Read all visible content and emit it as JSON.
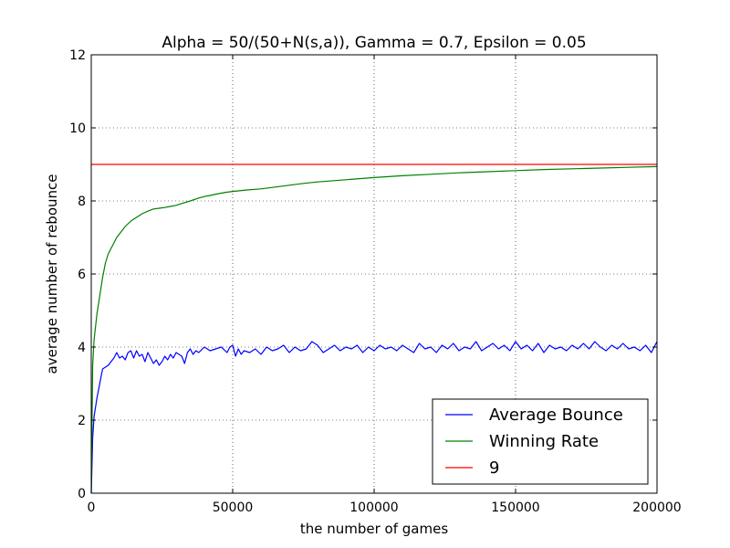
{
  "chart_data": {
    "type": "line",
    "title": "Alpha = 50/(50+N(s,a)), Gamma = 0.7, Epsilon = 0.05",
    "xlabel": "the number of games",
    "ylabel": "average number of rebounce",
    "xlim": [
      0,
      200000
    ],
    "ylim": [
      0,
      12
    ],
    "xticks": [
      0,
      50000,
      100000,
      150000,
      200000
    ],
    "xtick_labels": [
      "0",
      "50000",
      "100000",
      "150000",
      "200000"
    ],
    "yticks": [
      0,
      2,
      4,
      6,
      8,
      10,
      12
    ],
    "ytick_labels": [
      "0",
      "2",
      "4",
      "6",
      "8",
      "10",
      "12"
    ],
    "grid": true,
    "legend_position": "lower-right",
    "series": [
      {
        "name": "Average Bounce",
        "color": "#0000ff",
        "x": [
          0,
          500,
          1000,
          2000,
          3000,
          4000,
          5000,
          6000,
          8000,
          9000,
          10000,
          11000,
          12000,
          13000,
          14000,
          15000,
          16000,
          17000,
          18000,
          19000,
          20000,
          21000,
          22000,
          23000,
          24000,
          25000,
          26000,
          27000,
          28000,
          29000,
          30000,
          32000,
          33000,
          34000,
          35000,
          36000,
          37000,
          38000,
          40000,
          42000,
          44000,
          46000,
          48000,
          49000,
          50000,
          51000,
          52000,
          53000,
          54000,
          56000,
          58000,
          60000,
          62000,
          64000,
          66000,
          68000,
          70000,
          72000,
          74000,
          76000,
          78000,
          80000,
          82000,
          84000,
          86000,
          88000,
          90000,
          92000,
          94000,
          96000,
          98000,
          100000,
          102000,
          104000,
          106000,
          108000,
          110000,
          112000,
          114000,
          116000,
          118000,
          120000,
          122000,
          124000,
          126000,
          128000,
          130000,
          132000,
          134000,
          136000,
          138000,
          140000,
          142000,
          144000,
          146000,
          148000,
          150000,
          152000,
          154000,
          156000,
          158000,
          160000,
          162000,
          164000,
          166000,
          168000,
          170000,
          172000,
          174000,
          176000,
          178000,
          180000,
          182000,
          184000,
          186000,
          188000,
          190000,
          192000,
          194000,
          196000,
          198000,
          200000
        ],
        "y": [
          0.0,
          1.5,
          2.1,
          2.6,
          3.0,
          3.4,
          3.45,
          3.5,
          3.7,
          3.85,
          3.7,
          3.75,
          3.65,
          3.85,
          3.9,
          3.7,
          3.9,
          3.75,
          3.8,
          3.6,
          3.85,
          3.7,
          3.55,
          3.65,
          3.5,
          3.6,
          3.75,
          3.65,
          3.8,
          3.7,
          3.85,
          3.75,
          3.55,
          3.85,
          3.95,
          3.8,
          3.9,
          3.85,
          4.0,
          3.9,
          3.95,
          4.0,
          3.85,
          4.0,
          4.05,
          3.75,
          3.95,
          3.8,
          3.9,
          3.85,
          3.95,
          3.8,
          4.0,
          3.9,
          3.95,
          4.05,
          3.85,
          4.0,
          3.9,
          3.95,
          4.15,
          4.05,
          3.85,
          3.95,
          4.05,
          3.9,
          4.0,
          3.95,
          4.05,
          3.85,
          4.0,
          3.9,
          4.05,
          3.95,
          4.0,
          3.9,
          4.05,
          3.95,
          3.85,
          4.1,
          3.95,
          4.0,
          3.85,
          4.05,
          3.95,
          4.1,
          3.9,
          4.0,
          3.95,
          4.15,
          3.9,
          4.0,
          4.1,
          3.95,
          4.05,
          3.9,
          4.15,
          3.95,
          4.05,
          3.9,
          4.1,
          3.85,
          4.05,
          3.95,
          4.0,
          3.9,
          4.05,
          3.95,
          4.1,
          3.95,
          4.15,
          4.0,
          3.9,
          4.05,
          3.95,
          4.1,
          3.95,
          4.0,
          3.9,
          4.05,
          3.85,
          4.15
        ]
      },
      {
        "name": "Winning Rate",
        "color": "#008000",
        "x": [
          0,
          500,
          1000,
          2000,
          3000,
          4000,
          5000,
          6000,
          7000,
          8000,
          9000,
          10000,
          12000,
          14000,
          16000,
          18000,
          20000,
          22000,
          24000,
          26000,
          28000,
          30000,
          32000,
          35000,
          38000,
          40000,
          42000,
          45000,
          48000,
          50000,
          55000,
          60000,
          65000,
          70000,
          75000,
          80000,
          90000,
          100000,
          110000,
          120000,
          130000,
          140000,
          150000,
          160000,
          170000,
          180000,
          190000,
          200000
        ],
        "y": [
          0.0,
          3.5,
          4.2,
          4.9,
          5.4,
          5.9,
          6.3,
          6.55,
          6.7,
          6.85,
          7.0,
          7.1,
          7.3,
          7.45,
          7.55,
          7.65,
          7.72,
          7.78,
          7.8,
          7.82,
          7.85,
          7.88,
          7.93,
          8.0,
          8.08,
          8.12,
          8.15,
          8.2,
          8.24,
          8.26,
          8.3,
          8.33,
          8.38,
          8.43,
          8.48,
          8.52,
          8.58,
          8.64,
          8.69,
          8.73,
          8.77,
          8.8,
          8.83,
          8.86,
          8.88,
          8.9,
          8.92,
          8.94
        ]
      },
      {
        "name": "9",
        "color": "#ff0000",
        "x": [
          0,
          200000
        ],
        "y": [
          9,
          9
        ]
      }
    ]
  }
}
